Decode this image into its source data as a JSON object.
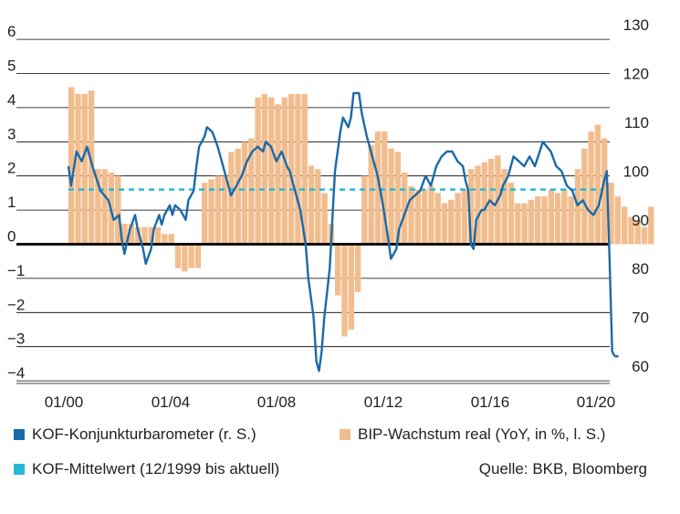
{
  "chart_data": {
    "type": "bar+line",
    "title": "",
    "x_tick_labels": [
      "01/00",
      "01/04",
      "01/08",
      "01/12",
      "01/16",
      "01/20"
    ],
    "x_range": [
      1999.95,
      2020.55
    ],
    "y_left": {
      "ylim": [
        -4.5,
        6
      ],
      "ticks": [
        6,
        5,
        4,
        3,
        2,
        1,
        0,
        -1,
        -2,
        -3,
        -4
      ]
    },
    "y_right": {
      "ylim": [
        57.5,
        130
      ],
      "ticks": [
        130,
        120,
        110,
        100,
        90,
        80,
        70,
        60
      ]
    },
    "colors": {
      "kof": "#1a6aa8",
      "gdp": "#f2bd8e",
      "mean": "#25b9d6",
      "zero": "#111111",
      "grid": "#000000"
    },
    "series": [
      {
        "name": "BIP-Wachstum real (YoY, in %, l. S.)",
        "axis": "left",
        "type": "bar",
        "quarterly_start": 2000.0,
        "values": [
          4.6,
          4.4,
          4.4,
          4.5,
          2.2,
          2.2,
          2.1,
          2.0,
          0.6,
          0.6,
          0.5,
          0.5,
          0.5,
          0.5,
          0.3,
          0.3,
          -0.7,
          -0.8,
          -0.7,
          -0.7,
          1.8,
          1.9,
          2.0,
          2.0,
          2.7,
          2.8,
          3.0,
          3.1,
          4.3,
          4.4,
          4.3,
          4.1,
          4.3,
          4.4,
          4.4,
          4.4,
          2.3,
          2.2,
          1.5,
          0.6,
          -1.5,
          -2.7,
          -2.5,
          -1.4,
          2.0,
          2.9,
          3.3,
          3.3,
          2.8,
          2.7,
          2.1,
          1.7,
          1.6,
          1.6,
          1.7,
          1.5,
          1.2,
          1.3,
          1.5,
          1.6,
          2.2,
          2.3,
          2.4,
          2.5,
          2.6,
          2.2,
          1.8,
          1.2,
          1.2,
          1.3,
          1.4,
          1.4,
          1.6,
          1.5,
          1.6,
          1.4,
          2.2,
          2.8,
          3.3,
          3.5,
          3.1,
          1.8,
          1.4,
          1.1,
          0.8,
          0.7,
          0.5,
          1.1
        ]
      },
      {
        "name": "KOF-Konjunkturbarometer (r. S.)",
        "axis": "right",
        "type": "line",
        "points": [
          [
            2000.0,
            101
          ],
          [
            2000.1,
            97
          ],
          [
            2000.3,
            104
          ],
          [
            2000.5,
            102
          ],
          [
            2000.7,
            105
          ],
          [
            2000.9,
            101
          ],
          [
            2001.2,
            96
          ],
          [
            2001.5,
            94
          ],
          [
            2001.7,
            90
          ],
          [
            2001.9,
            91
          ],
          [
            2002.0,
            86
          ],
          [
            2002.1,
            83
          ],
          [
            2002.3,
            88
          ],
          [
            2002.5,
            91
          ],
          [
            2002.6,
            88
          ],
          [
            2002.8,
            84
          ],
          [
            2002.9,
            81
          ],
          [
            2003.1,
            84
          ],
          [
            2003.2,
            88
          ],
          [
            2003.4,
            91
          ],
          [
            2003.5,
            89
          ],
          [
            2003.6,
            91
          ],
          [
            2003.8,
            93
          ],
          [
            2003.9,
            91
          ],
          [
            2004.0,
            93
          ],
          [
            2004.2,
            92
          ],
          [
            2004.4,
            90
          ],
          [
            2004.5,
            94
          ],
          [
            2004.7,
            96
          ],
          [
            2004.8,
            101
          ],
          [
            2004.9,
            105
          ],
          [
            2005.1,
            107
          ],
          [
            2005.2,
            109
          ],
          [
            2005.4,
            108
          ],
          [
            2005.6,
            105
          ],
          [
            2005.8,
            101
          ],
          [
            2006.0,
            97
          ],
          [
            2006.1,
            95
          ],
          [
            2006.3,
            97
          ],
          [
            2006.5,
            99
          ],
          [
            2006.7,
            102
          ],
          [
            2006.9,
            104
          ],
          [
            2007.1,
            105
          ],
          [
            2007.3,
            104
          ],
          [
            2007.4,
            106
          ],
          [
            2007.6,
            105
          ],
          [
            2007.8,
            102
          ],
          [
            2008.0,
            104
          ],
          [
            2008.2,
            101
          ],
          [
            2008.3,
            100
          ],
          [
            2008.5,
            96
          ],
          [
            2008.7,
            92
          ],
          [
            2008.9,
            85
          ],
          [
            2009.0,
            78
          ],
          [
            2009.2,
            70
          ],
          [
            2009.3,
            61
          ],
          [
            2009.4,
            59
          ],
          [
            2009.5,
            63
          ],
          [
            2009.6,
            70
          ],
          [
            2009.8,
            80
          ],
          [
            2009.9,
            90
          ],
          [
            2010.0,
            100
          ],
          [
            2010.2,
            108
          ],
          [
            2010.3,
            111
          ],
          [
            2010.5,
            109
          ],
          [
            2010.6,
            111
          ],
          [
            2010.7,
            116
          ],
          [
            2010.9,
            116
          ],
          [
            2011.0,
            112
          ],
          [
            2011.2,
            107
          ],
          [
            2011.4,
            103
          ],
          [
            2011.6,
            99
          ],
          [
            2011.8,
            93
          ],
          [
            2012.0,
            86
          ],
          [
            2012.1,
            82
          ],
          [
            2012.3,
            84
          ],
          [
            2012.4,
            88
          ],
          [
            2012.6,
            91
          ],
          [
            2012.8,
            94
          ],
          [
            2013.0,
            95
          ],
          [
            2013.2,
            96
          ],
          [
            2013.4,
            99
          ],
          [
            2013.6,
            97
          ],
          [
            2013.8,
            101
          ],
          [
            2014.0,
            103
          ],
          [
            2014.2,
            104
          ],
          [
            2014.4,
            104
          ],
          [
            2014.6,
            102
          ],
          [
            2014.8,
            101
          ],
          [
            2014.9,
            98
          ],
          [
            2015.0,
            96
          ],
          [
            2015.1,
            85
          ],
          [
            2015.2,
            84
          ],
          [
            2015.3,
            90
          ],
          [
            2015.5,
            92
          ],
          [
            2015.6,
            92
          ],
          [
            2015.8,
            94
          ],
          [
            2016.0,
            93
          ],
          [
            2016.2,
            95
          ],
          [
            2016.3,
            97
          ],
          [
            2016.5,
            99
          ],
          [
            2016.7,
            103
          ],
          [
            2016.9,
            102
          ],
          [
            2017.1,
            101
          ],
          [
            2017.3,
            103
          ],
          [
            2017.5,
            101
          ],
          [
            2017.8,
            106
          ],
          [
            2018.1,
            104
          ],
          [
            2018.3,
            101
          ],
          [
            2018.5,
            100
          ],
          [
            2018.7,
            97
          ],
          [
            2018.9,
            96
          ],
          [
            2019.1,
            93
          ],
          [
            2019.3,
            94
          ],
          [
            2019.5,
            92
          ],
          [
            2019.7,
            91
          ],
          [
            2019.9,
            93
          ],
          [
            2020.1,
            98
          ],
          [
            2020.2,
            100
          ],
          [
            2020.3,
            82
          ],
          [
            2020.4,
            63
          ],
          [
            2020.5,
            62
          ]
        ]
      },
      {
        "name": "KOF-Mittelwert (12/1999 bis aktuell)",
        "axis": "left",
        "type": "dashed-line",
        "value": 1.6
      }
    ],
    "legend_placement": "bottom",
    "grid": "horizontal"
  },
  "legend": {
    "kof": "KOF-Konjunkturbarometer (r. S.)",
    "gdp": "BIP-Wachstum real (YoY, in %, l. S.)",
    "mean": "KOF-Mittelwert (12/1999 bis aktuell)"
  },
  "source": "Quelle: BKB, Bloomberg"
}
